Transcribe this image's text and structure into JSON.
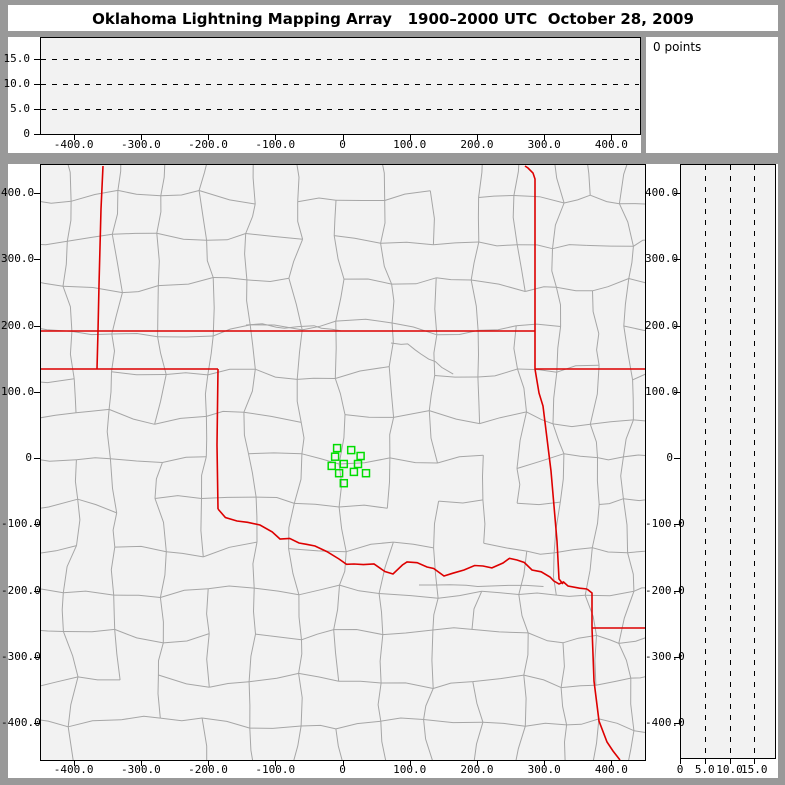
{
  "title": "Oklahoma Lightning Mapping Array   1900–2000 UTC  October 28, 2009",
  "points_panel": {
    "label": "0 points"
  },
  "colors": {
    "window_frame_gray": "#999999",
    "panel_background": "#f2f2f2",
    "paper_white": "#ffffff",
    "county_line_gray": "#a6a6a6",
    "state_border_red": "#dd0000",
    "station_green": "#00dd00",
    "axis_black": "#000000"
  },
  "chart_data": {
    "type": "scatter",
    "description": "Lightning Mapping Array real-time display: plan-view map of Oklahoma region with county (gray) and state (red) boundaries, plus altitude side panels (E-W along top, N-S along right). Zero lightning source points are plotted for this hour; green squares mark LMA station locations.",
    "title": "Oklahoma Lightning Mapping Array   1900–2000 UTC  October 28, 2009",
    "points_plotted": 0,
    "status_text": "0 points",
    "map_x_range_km": [
      -450,
      450
    ],
    "map_y_range_km": [
      -450,
      450
    ],
    "map_x_ticks_km": [
      -400,
      -300,
      -200,
      -100,
      0,
      100,
      200,
      300,
      400
    ],
    "map_x_tick_labels": [
      "-400.0",
      "-300.0",
      "-200.0",
      "-100.0",
      "0",
      "100.0",
      "200.0",
      "300.0",
      "400.0"
    ],
    "map_y_ticks_km": [
      400,
      300,
      200,
      100,
      0,
      -100,
      -200,
      -300,
      -400
    ],
    "map_y_tick_labels": [
      "400.0",
      "300.0",
      "200.0",
      "100.0",
      "0",
      "-100.0",
      "-200.0",
      "-300.0",
      "-400.0"
    ],
    "alt_range_km": [
      0,
      19.4
    ],
    "alt_ticks_km": [
      0,
      5,
      10,
      15
    ],
    "alt_tick_labels": [
      "0",
      "5.0",
      "10.0",
      "15.0"
    ],
    "alt_dashed_gridlines_km": [
      5,
      10,
      15
    ],
    "legend": "none",
    "series": [
      {
        "name": "lightning_sources",
        "marker": "dot",
        "points_km": []
      },
      {
        "name": "lma_stations",
        "marker": "green_open_square",
        "points_km": [
          [
            -8,
            15
          ],
          [
            13,
            12
          ],
          [
            27,
            3
          ],
          [
            -11,
            2
          ],
          [
            -16,
            -12
          ],
          [
            2,
            -9
          ],
          [
            23,
            -9
          ],
          [
            -5,
            -23
          ],
          [
            17,
            -21
          ],
          [
            35,
            -23
          ],
          [
            2,
            -38
          ]
        ]
      }
    ]
  }
}
